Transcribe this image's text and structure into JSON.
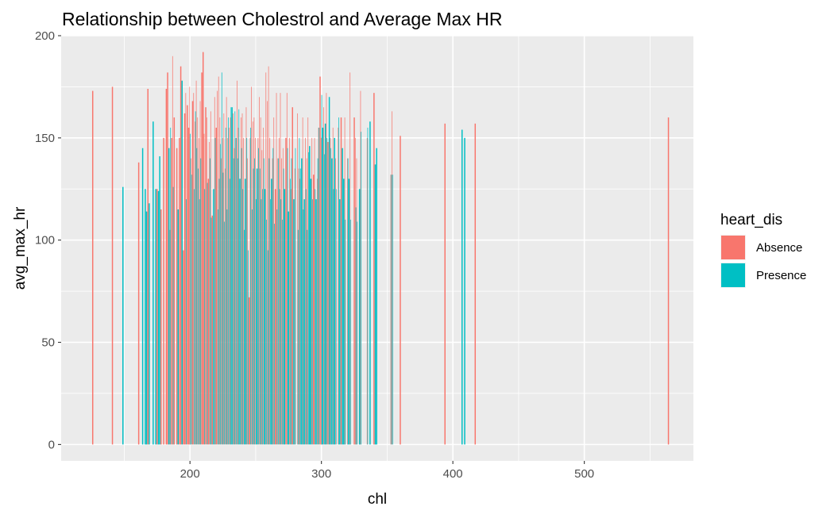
{
  "chart_data": {
    "type": "bar",
    "title": "Relationship between Cholestrol and Average Max HR",
    "xlabel": "chl",
    "ylabel": "avg_max_hr",
    "xlim": [
      102,
      583
    ],
    "ylim": [
      -8,
      200
    ],
    "x_ticks": [
      200,
      300,
      400,
      500
    ],
    "x_tick_labels": [
      "200",
      "300",
      "400",
      "500"
    ],
    "y_ticks": [
      0,
      50,
      100,
      150,
      200
    ],
    "y_tick_labels": [
      "0",
      "50",
      "100",
      "150",
      "200"
    ],
    "grid": true,
    "legend": {
      "title": "heart_dis",
      "position": "right"
    },
    "series": [
      {
        "name": "Absence",
        "color": "#F8766D",
        "points": [
          {
            "x": 126,
            "y": 173
          },
          {
            "x": 141,
            "y": 175
          },
          {
            "x": 161,
            "y": 138
          },
          {
            "x": 168,
            "y": 174
          },
          {
            "x": 175,
            "y": 125
          },
          {
            "x": 178,
            "y": 115
          },
          {
            "x": 180,
            "y": 150
          },
          {
            "x": 182,
            "y": 174
          },
          {
            "x": 183,
            "y": 182
          },
          {
            "x": 185,
            "y": 105
          },
          {
            "x": 186,
            "y": 150
          },
          {
            "x": 187,
            "y": 190
          },
          {
            "x": 188,
            "y": 160
          },
          {
            "x": 190,
            "y": 145
          },
          {
            "x": 192,
            "y": 150
          },
          {
            "x": 193,
            "y": 185
          },
          {
            "x": 195,
            "y": 95
          },
          {
            "x": 196,
            "y": 162
          },
          {
            "x": 197,
            "y": 172
          },
          {
            "x": 198,
            "y": 166
          },
          {
            "x": 199,
            "y": 155
          },
          {
            "x": 200,
            "y": 175
          },
          {
            "x": 201,
            "y": 140
          },
          {
            "x": 202,
            "y": 168
          },
          {
            "x": 203,
            "y": 172
          },
          {
            "x": 204,
            "y": 158
          },
          {
            "x": 205,
            "y": 178
          },
          {
            "x": 206,
            "y": 160
          },
          {
            "x": 207,
            "y": 150
          },
          {
            "x": 208,
            "y": 168
          },
          {
            "x": 209,
            "y": 182
          },
          {
            "x": 210,
            "y": 192
          },
          {
            "x": 211,
            "y": 152
          },
          {
            "x": 212,
            "y": 165
          },
          {
            "x": 213,
            "y": 160
          },
          {
            "x": 214,
            "y": 130
          },
          {
            "x": 215,
            "y": 148
          },
          {
            "x": 216,
            "y": 163
          },
          {
            "x": 217,
            "y": 112
          },
          {
            "x": 219,
            "y": 170
          },
          {
            "x": 220,
            "y": 155
          },
          {
            "x": 221,
            "y": 173
          },
          {
            "x": 222,
            "y": 180
          },
          {
            "x": 223,
            "y": 160
          },
          {
            "x": 224,
            "y": 140
          },
          {
            "x": 225,
            "y": 150
          },
          {
            "x": 226,
            "y": 162
          },
          {
            "x": 227,
            "y": 135
          },
          {
            "x": 228,
            "y": 170
          },
          {
            "x": 229,
            "y": 150
          },
          {
            "x": 230,
            "y": 155
          },
          {
            "x": 231,
            "y": 160
          },
          {
            "x": 233,
            "y": 162
          },
          {
            "x": 234,
            "y": 145
          },
          {
            "x": 235,
            "y": 150
          },
          {
            "x": 236,
            "y": 178
          },
          {
            "x": 237,
            "y": 155
          },
          {
            "x": 239,
            "y": 160
          },
          {
            "x": 240,
            "y": 162
          },
          {
            "x": 241,
            "y": 150
          },
          {
            "x": 243,
            "y": 165
          },
          {
            "x": 244,
            "y": 140
          },
          {
            "x": 245,
            "y": 72
          },
          {
            "x": 246,
            "y": 150
          },
          {
            "x": 247,
            "y": 175
          },
          {
            "x": 248,
            "y": 158
          },
          {
            "x": 249,
            "y": 160
          },
          {
            "x": 250,
            "y": 150
          },
          {
            "x": 252,
            "y": 150
          },
          {
            "x": 253,
            "y": 170
          },
          {
            "x": 254,
            "y": 160
          },
          {
            "x": 255,
            "y": 144
          },
          {
            "x": 256,
            "y": 155
          },
          {
            "x": 258,
            "y": 182
          },
          {
            "x": 259,
            "y": 168
          },
          {
            "x": 260,
            "y": 185
          },
          {
            "x": 261,
            "y": 150
          },
          {
            "x": 263,
            "y": 140
          },
          {
            "x": 264,
            "y": 160
          },
          {
            "x": 265,
            "y": 125
          },
          {
            "x": 266,
            "y": 172
          },
          {
            "x": 267,
            "y": 140
          },
          {
            "x": 268,
            "y": 150
          },
          {
            "x": 269,
            "y": 172
          },
          {
            "x": 270,
            "y": 140
          },
          {
            "x": 271,
            "y": 145
          },
          {
            "x": 273,
            "y": 150
          },
          {
            "x": 274,
            "y": 172
          },
          {
            "x": 276,
            "y": 150
          },
          {
            "x": 277,
            "y": 125
          },
          {
            "x": 278,
            "y": 165
          },
          {
            "x": 280,
            "y": 135
          },
          {
            "x": 282,
            "y": 162
          },
          {
            "x": 283,
            "y": 135
          },
          {
            "x": 284,
            "y": 130
          },
          {
            "x": 286,
            "y": 160
          },
          {
            "x": 288,
            "y": 150
          },
          {
            "x": 289,
            "y": 140
          },
          {
            "x": 290,
            "y": 160
          },
          {
            "x": 293,
            "y": 150
          },
          {
            "x": 294,
            "y": 132
          },
          {
            "x": 295,
            "y": 150
          },
          {
            "x": 297,
            "y": 130
          },
          {
            "x": 298,
            "y": 155
          },
          {
            "x": 299,
            "y": 180
          },
          {
            "x": 300,
            "y": 150
          },
          {
            "x": 302,
            "y": 165
          },
          {
            "x": 304,
            "y": 172
          },
          {
            "x": 305,
            "y": 148
          },
          {
            "x": 307,
            "y": 150
          },
          {
            "x": 309,
            "y": 155
          },
          {
            "x": 311,
            "y": 140
          },
          {
            "x": 313,
            "y": 155
          },
          {
            "x": 315,
            "y": 160
          },
          {
            "x": 318,
            "y": 160
          },
          {
            "x": 320,
            "y": 140
          },
          {
            "x": 322,
            "y": 182
          },
          {
            "x": 325,
            "y": 160
          },
          {
            "x": 326,
            "y": 150
          },
          {
            "x": 327,
            "y": 140
          },
          {
            "x": 330,
            "y": 173
          },
          {
            "x": 335,
            "y": 150
          },
          {
            "x": 340,
            "y": 172
          },
          {
            "x": 353,
            "y": 132
          },
          {
            "x": 354,
            "y": 163
          },
          {
            "x": 360,
            "y": 151
          },
          {
            "x": 394,
            "y": 157
          },
          {
            "x": 417,
            "y": 157
          },
          {
            "x": 564,
            "y": 160
          }
        ]
      },
      {
        "name": "Presence",
        "color": "#00BFC4",
        "points": [
          {
            "x": 149,
            "y": 126
          },
          {
            "x": 164,
            "y": 145
          },
          {
            "x": 166,
            "y": 125
          },
          {
            "x": 167,
            "y": 114
          },
          {
            "x": 169,
            "y": 118
          },
          {
            "x": 172,
            "y": 158
          },
          {
            "x": 174,
            "y": 125
          },
          {
            "x": 176,
            "y": 124
          },
          {
            "x": 177,
            "y": 141
          },
          {
            "x": 184,
            "y": 145
          },
          {
            "x": 185,
            "y": 155
          },
          {
            "x": 187,
            "y": 126
          },
          {
            "x": 191,
            "y": 115
          },
          {
            "x": 194,
            "y": 178
          },
          {
            "x": 197,
            "y": 120
          },
          {
            "x": 200,
            "y": 152
          },
          {
            "x": 201,
            "y": 132
          },
          {
            "x": 203,
            "y": 125
          },
          {
            "x": 204,
            "y": 163
          },
          {
            "x": 205,
            "y": 145
          },
          {
            "x": 206,
            "y": 135
          },
          {
            "x": 207,
            "y": 120
          },
          {
            "x": 208,
            "y": 140
          },
          {
            "x": 211,
            "y": 125
          },
          {
            "x": 213,
            "y": 128
          },
          {
            "x": 215,
            "y": 140
          },
          {
            "x": 216,
            "y": 111
          },
          {
            "x": 218,
            "y": 125
          },
          {
            "x": 219,
            "y": 150
          },
          {
            "x": 221,
            "y": 115
          },
          {
            "x": 222,
            "y": 130
          },
          {
            "x": 223,
            "y": 147
          },
          {
            "x": 224,
            "y": 182
          },
          {
            "x": 225,
            "y": 133
          },
          {
            "x": 226,
            "y": 109
          },
          {
            "x": 227,
            "y": 155
          },
          {
            "x": 228,
            "y": 115
          },
          {
            "x": 229,
            "y": 160
          },
          {
            "x": 230,
            "y": 130
          },
          {
            "x": 231,
            "y": 165
          },
          {
            "x": 232,
            "y": 165
          },
          {
            "x": 233,
            "y": 140
          },
          {
            "x": 234,
            "y": 163
          },
          {
            "x": 235,
            "y": 150
          },
          {
            "x": 236,
            "y": 140
          },
          {
            "x": 237,
            "y": 164
          },
          {
            "x": 238,
            "y": 130
          },
          {
            "x": 239,
            "y": 145
          },
          {
            "x": 240,
            "y": 125
          },
          {
            "x": 241,
            "y": 105
          },
          {
            "x": 242,
            "y": 130
          },
          {
            "x": 243,
            "y": 150
          },
          {
            "x": 244,
            "y": 95
          },
          {
            "x": 246,
            "y": 155
          },
          {
            "x": 247,
            "y": 115
          },
          {
            "x": 248,
            "y": 135
          },
          {
            "x": 249,
            "y": 140
          },
          {
            "x": 250,
            "y": 120
          },
          {
            "x": 251,
            "y": 135
          },
          {
            "x": 252,
            "y": 145
          },
          {
            "x": 253,
            "y": 135
          },
          {
            "x": 254,
            "y": 120
          },
          {
            "x": 255,
            "y": 125
          },
          {
            "x": 256,
            "y": 140
          },
          {
            "x": 257,
            "y": 125
          },
          {
            "x": 258,
            "y": 110
          },
          {
            "x": 259,
            "y": 95
          },
          {
            "x": 260,
            "y": 140
          },
          {
            "x": 261,
            "y": 120
          },
          {
            "x": 262,
            "y": 130
          },
          {
            "x": 263,
            "y": 145
          },
          {
            "x": 264,
            "y": 108
          },
          {
            "x": 266,
            "y": 115
          },
          {
            "x": 267,
            "y": 140
          },
          {
            "x": 268,
            "y": 125
          },
          {
            "x": 269,
            "y": 120
          },
          {
            "x": 270,
            "y": 110
          },
          {
            "x": 271,
            "y": 135
          },
          {
            "x": 272,
            "y": 125
          },
          {
            "x": 274,
            "y": 145
          },
          {
            "x": 275,
            "y": 114
          },
          {
            "x": 276,
            "y": 130
          },
          {
            "x": 277,
            "y": 140
          },
          {
            "x": 279,
            "y": 120
          },
          {
            "x": 280,
            "y": 145
          },
          {
            "x": 282,
            "y": 105
          },
          {
            "x": 283,
            "y": 150
          },
          {
            "x": 284,
            "y": 135
          },
          {
            "x": 285,
            "y": 140
          },
          {
            "x": 286,
            "y": 115
          },
          {
            "x": 287,
            "y": 120
          },
          {
            "x": 288,
            "y": 125
          },
          {
            "x": 289,
            "y": 105
          },
          {
            "x": 290,
            "y": 143
          },
          {
            "x": 291,
            "y": 146
          },
          {
            "x": 292,
            "y": 130
          },
          {
            "x": 293,
            "y": 120
          },
          {
            "x": 295,
            "y": 125
          },
          {
            "x": 296,
            "y": 120
          },
          {
            "x": 297,
            "y": 140
          },
          {
            "x": 298,
            "y": 155
          },
          {
            "x": 300,
            "y": 171
          },
          {
            "x": 301,
            "y": 155
          },
          {
            "x": 302,
            "y": 142
          },
          {
            "x": 303,
            "y": 157
          },
          {
            "x": 304,
            "y": 150
          },
          {
            "x": 306,
            "y": 170
          },
          {
            "x": 307,
            "y": 145
          },
          {
            "x": 308,
            "y": 140
          },
          {
            "x": 309,
            "y": 125
          },
          {
            "x": 310,
            "y": 150
          },
          {
            "x": 311,
            "y": 125
          },
          {
            "x": 313,
            "y": 160
          },
          {
            "x": 314,
            "y": 120
          },
          {
            "x": 316,
            "y": 145
          },
          {
            "x": 317,
            "y": 130
          },
          {
            "x": 318,
            "y": 110
          },
          {
            "x": 320,
            "y": 140
          },
          {
            "x": 321,
            "y": 130
          },
          {
            "x": 322,
            "y": 110
          },
          {
            "x": 326,
            "y": 116
          },
          {
            "x": 327,
            "y": 109
          },
          {
            "x": 329,
            "y": 125
          },
          {
            "x": 330,
            "y": 153
          },
          {
            "x": 335,
            "y": 155
          },
          {
            "x": 337,
            "y": 158
          },
          {
            "x": 341,
            "y": 137
          },
          {
            "x": 342,
            "y": 145
          },
          {
            "x": 353,
            "y": 132
          },
          {
            "x": 354,
            "y": 132
          },
          {
            "x": 407,
            "y": 154
          },
          {
            "x": 409,
            "y": 150
          }
        ]
      }
    ]
  }
}
